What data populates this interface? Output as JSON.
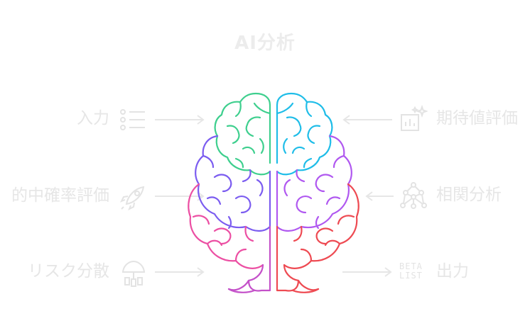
{
  "title": "AI分析",
  "left_items": [
    {
      "label": "入力",
      "icon": "list-icon"
    },
    {
      "label": "的中確率評価",
      "icon": "rocket-icon"
    },
    {
      "label": "リスク分散",
      "icon": "umbrella-icon"
    }
  ],
  "right_items": [
    {
      "label": "期待値評価",
      "icon": "sparkle-chart-icon"
    },
    {
      "label": "相関分析",
      "icon": "network-icon"
    },
    {
      "label": "出力",
      "icon": "beta-list-icon",
      "icon_text": [
        "BETA",
        "LIST"
      ]
    }
  ],
  "colors": {
    "green": "#3ecf8e",
    "cyan": "#1fbde8",
    "purple": "#7b5cf0",
    "violet": "#b058f0",
    "pink": "#ec4fa3",
    "red": "#ee4a52",
    "muted": "#e6e6e6"
  }
}
